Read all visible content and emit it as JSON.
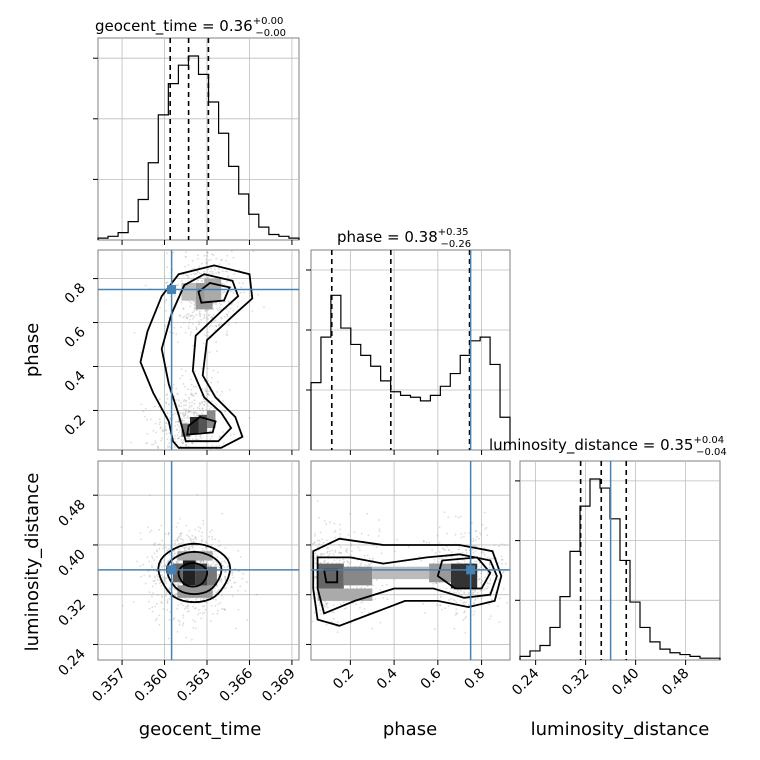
{
  "chart_data": {
    "type": "corner",
    "parameters": [
      "geocent_time",
      "phase",
      "luminosity_distance"
    ],
    "titles": [
      {
        "name": "geocent_time",
        "median": "0.36",
        "plus": "+0.00",
        "minus": "−0.00"
      },
      {
        "name": "phase",
        "median": "0.38",
        "plus": "+0.35",
        "minus": "−0.26"
      },
      {
        "name": "luminosity_distance",
        "median": "0.35",
        "plus": "+0.04",
        "minus": "−0.04"
      }
    ],
    "axes": {
      "geocent_time": {
        "range": [
          0.3553,
          0.3695
        ],
        "ticks": [
          "0.357",
          "0.360",
          "0.363",
          "0.366",
          "0.369"
        ],
        "tick_values": [
          0.357,
          0.36,
          0.363,
          0.366,
          0.369
        ]
      },
      "phase": {
        "range": [
          0.02,
          0.93
        ],
        "ticks": [
          "0.2",
          "0.4",
          "0.6",
          "0.8"
        ],
        "tick_values": [
          0.2,
          0.4,
          0.6,
          0.8
        ]
      },
      "luminosity_distance": {
        "range": [
          0.215,
          0.535
        ],
        "ticks": [
          "0.24",
          "0.32",
          "0.40",
          "0.48"
        ],
        "tick_values": [
          0.24,
          0.32,
          0.4,
          0.48
        ]
      }
    },
    "truths": {
      "geocent_time": 0.3605,
      "phase": 0.75,
      "luminosity_distance": 0.36
    },
    "quantiles": {
      "geocent_time": [
        0.3604,
        0.3617,
        0.3631
      ],
      "phase": [
        0.115,
        0.385,
        0.745
      ],
      "luminosity_distance": [
        0.312,
        0.345,
        0.385
      ]
    },
    "histograms": {
      "geocent_time": [
        0.01,
        0.02,
        0.04,
        0.1,
        0.22,
        0.42,
        0.68,
        0.85,
        0.95,
        1.0,
        0.9,
        0.75,
        0.58,
        0.4,
        0.25,
        0.14,
        0.07,
        0.03,
        0.02,
        0.01
      ],
      "phase": [
        0.37,
        0.62,
        0.85,
        0.67,
        0.58,
        0.52,
        0.46,
        0.38,
        0.32,
        0.3,
        0.29,
        0.27,
        0.3,
        0.35,
        0.42,
        0.52,
        0.6,
        0.62,
        0.47,
        0.18
      ],
      "luminosity_distance": [
        0.02,
        0.05,
        0.08,
        0.18,
        0.35,
        0.6,
        0.85,
        1.0,
        0.95,
        0.78,
        0.55,
        0.32,
        0.18,
        0.1,
        0.06,
        0.04,
        0.03,
        0.02,
        0.01,
        0.01
      ]
    },
    "grid": true
  }
}
